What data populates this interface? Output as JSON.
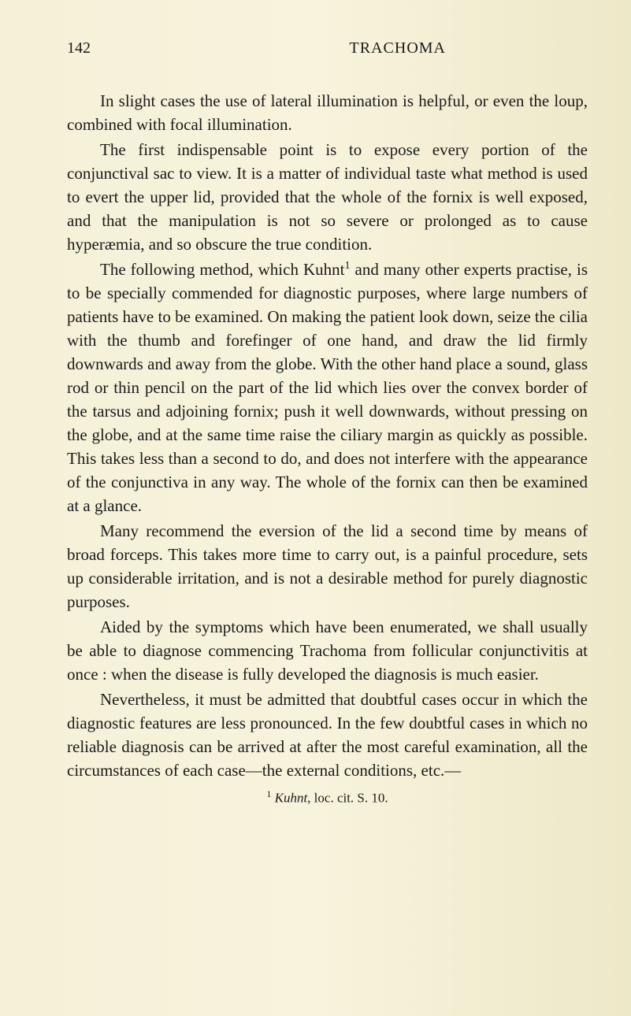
{
  "header": {
    "pageNumber": "142",
    "title": "TRACHOMA"
  },
  "paragraphs": {
    "p1": "In slight cases the use of lateral illumination is helpful, or even the loup, combined with focal illumination.",
    "p2a": "The first indispensable point is to expose every portion of the conjunctival sac to view. It is a matter of indi­vidual taste what method is used to evert the upper lid, provided that the whole of the fornix is well exposed, and that the manipulation is not so severe or prolonged as to cause hyperæmia, and so obscure the true condition.",
    "p3a": "The following method, which Kuhnt",
    "p3b": " and many other experts practise, is to be specially commended for diagnostic purposes, where large numbers of patients have to be examined. On making the patient look down, seize the cilia with the thumb and forefinger of one hand, and draw the lid firmly downwards and away from the globe. With the other hand place a sound, glass rod or thin pencil on the part of the lid which lies over the convex border of the tarsus and adjoining fornix; push it well down­wards, without pressing on the globe, and at the same time raise the ciliary margin as quickly as possible. This takes less than a second to do, and does not interfere with the appearance of the conjunctiva in any way. The whole of the fornix can then be examined at a glance.",
    "p4": "Many recommend the eversion of the lid a second time by means of broad forceps. This takes more time to carry out, is a painful procedure, sets up considerable irritation, and is not a desirable method for purely diagnostic purposes.",
    "p5": "Aided by the symptoms which have been enumerated, we shall usually be able to diagnose commencing Trachoma from follicular conjunctivitis at once : when the disease is fully developed the diagnosis is much easier.",
    "p6": "Nevertheless, it must be admitted that doubtful cases occur in which the diagnostic features are less pronounced. In the few doubtful cases in which no reliable diagnosis can be arrived at after the most careful examination, all the circumstances of each case—the external conditions, etc.—"
  },
  "footnote": {
    "num": "1",
    "author": "Kuhnt",
    "rest": ", loc. cit. S. 10."
  },
  "refMark": "1"
}
